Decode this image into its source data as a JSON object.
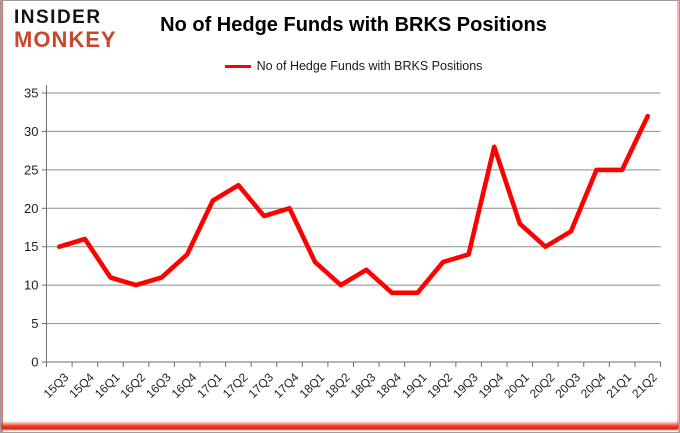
{
  "logo": {
    "line1": "INSIDER",
    "line2": "MONKEY",
    "color": "#c8472f"
  },
  "header": {
    "title": "No of Hedge Funds with BRKS Positions"
  },
  "legend": {
    "label": "No of Hedge Funds with BRKS Positions"
  },
  "colors": {
    "series": "#fe0000",
    "grid": "#8e8e8e",
    "axis": "#6e6e6e",
    "tick_label": "#1f1f1f",
    "background": "#ffffff"
  },
  "chart_data": {
    "type": "line",
    "title": "No of Hedge Funds with BRKS Positions",
    "categories": [
      "15Q3",
      "15Q4",
      "16Q1",
      "16Q2",
      "16Q3",
      "16Q4",
      "17Q1",
      "17Q2",
      "17Q3",
      "17Q4",
      "18Q1",
      "18Q2",
      "18Q3",
      "18Q4",
      "19Q1",
      "19Q2",
      "19Q3",
      "19Q4",
      "20Q1",
      "20Q2",
      "20Q3",
      "20Q4",
      "21Q1",
      "21Q2"
    ],
    "series": [
      {
        "name": "No of Hedge Funds with BRKS Positions",
        "color": "#fe0000",
        "values": [
          15,
          16,
          11,
          10,
          11,
          14,
          21,
          23,
          19,
          20,
          13,
          10,
          12,
          9,
          9,
          13,
          14,
          28,
          18,
          15,
          17,
          25,
          25,
          32
        ]
      }
    ],
    "xlabel": "",
    "ylabel": "",
    "ylim": [
      0,
      35
    ],
    "ytick_step": 5,
    "yticks": [
      0,
      5,
      10,
      15,
      20,
      25,
      30,
      35
    ],
    "grid": true,
    "legend_position": "top-center"
  }
}
